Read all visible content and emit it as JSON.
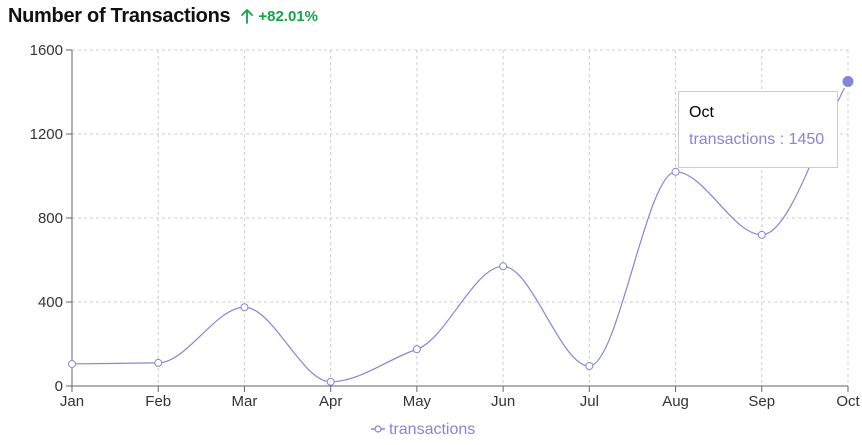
{
  "header": {
    "title": "Number of Transactions",
    "change": "+82.01%"
  },
  "colors": {
    "series": "#8884d8",
    "change": "#16a34a",
    "grid": "#cccccc",
    "axis": "#666666"
  },
  "icons": {
    "change_icon": "arrow-up-icon"
  },
  "tooltip": {
    "title": "Oct",
    "label": "transactions",
    "separator": " : ",
    "value": "1450"
  },
  "chart_data": {
    "type": "line",
    "categories": [
      "Jan",
      "Feb",
      "Mar",
      "Apr",
      "May",
      "Jun",
      "Jul",
      "Aug",
      "Sep",
      "Oct"
    ],
    "series": [
      {
        "name": "transactions",
        "values": [
          105,
          110,
          375,
          20,
          175,
          570,
          95,
          1020,
          720,
          1450
        ]
      }
    ],
    "ylim": [
      0,
      1600
    ],
    "yticks": [
      0,
      400,
      800,
      1200,
      1600
    ],
    "grid": true,
    "legend": "bottom",
    "active_point": "Oct",
    "title": "",
    "xlabel": "",
    "ylabel": ""
  }
}
